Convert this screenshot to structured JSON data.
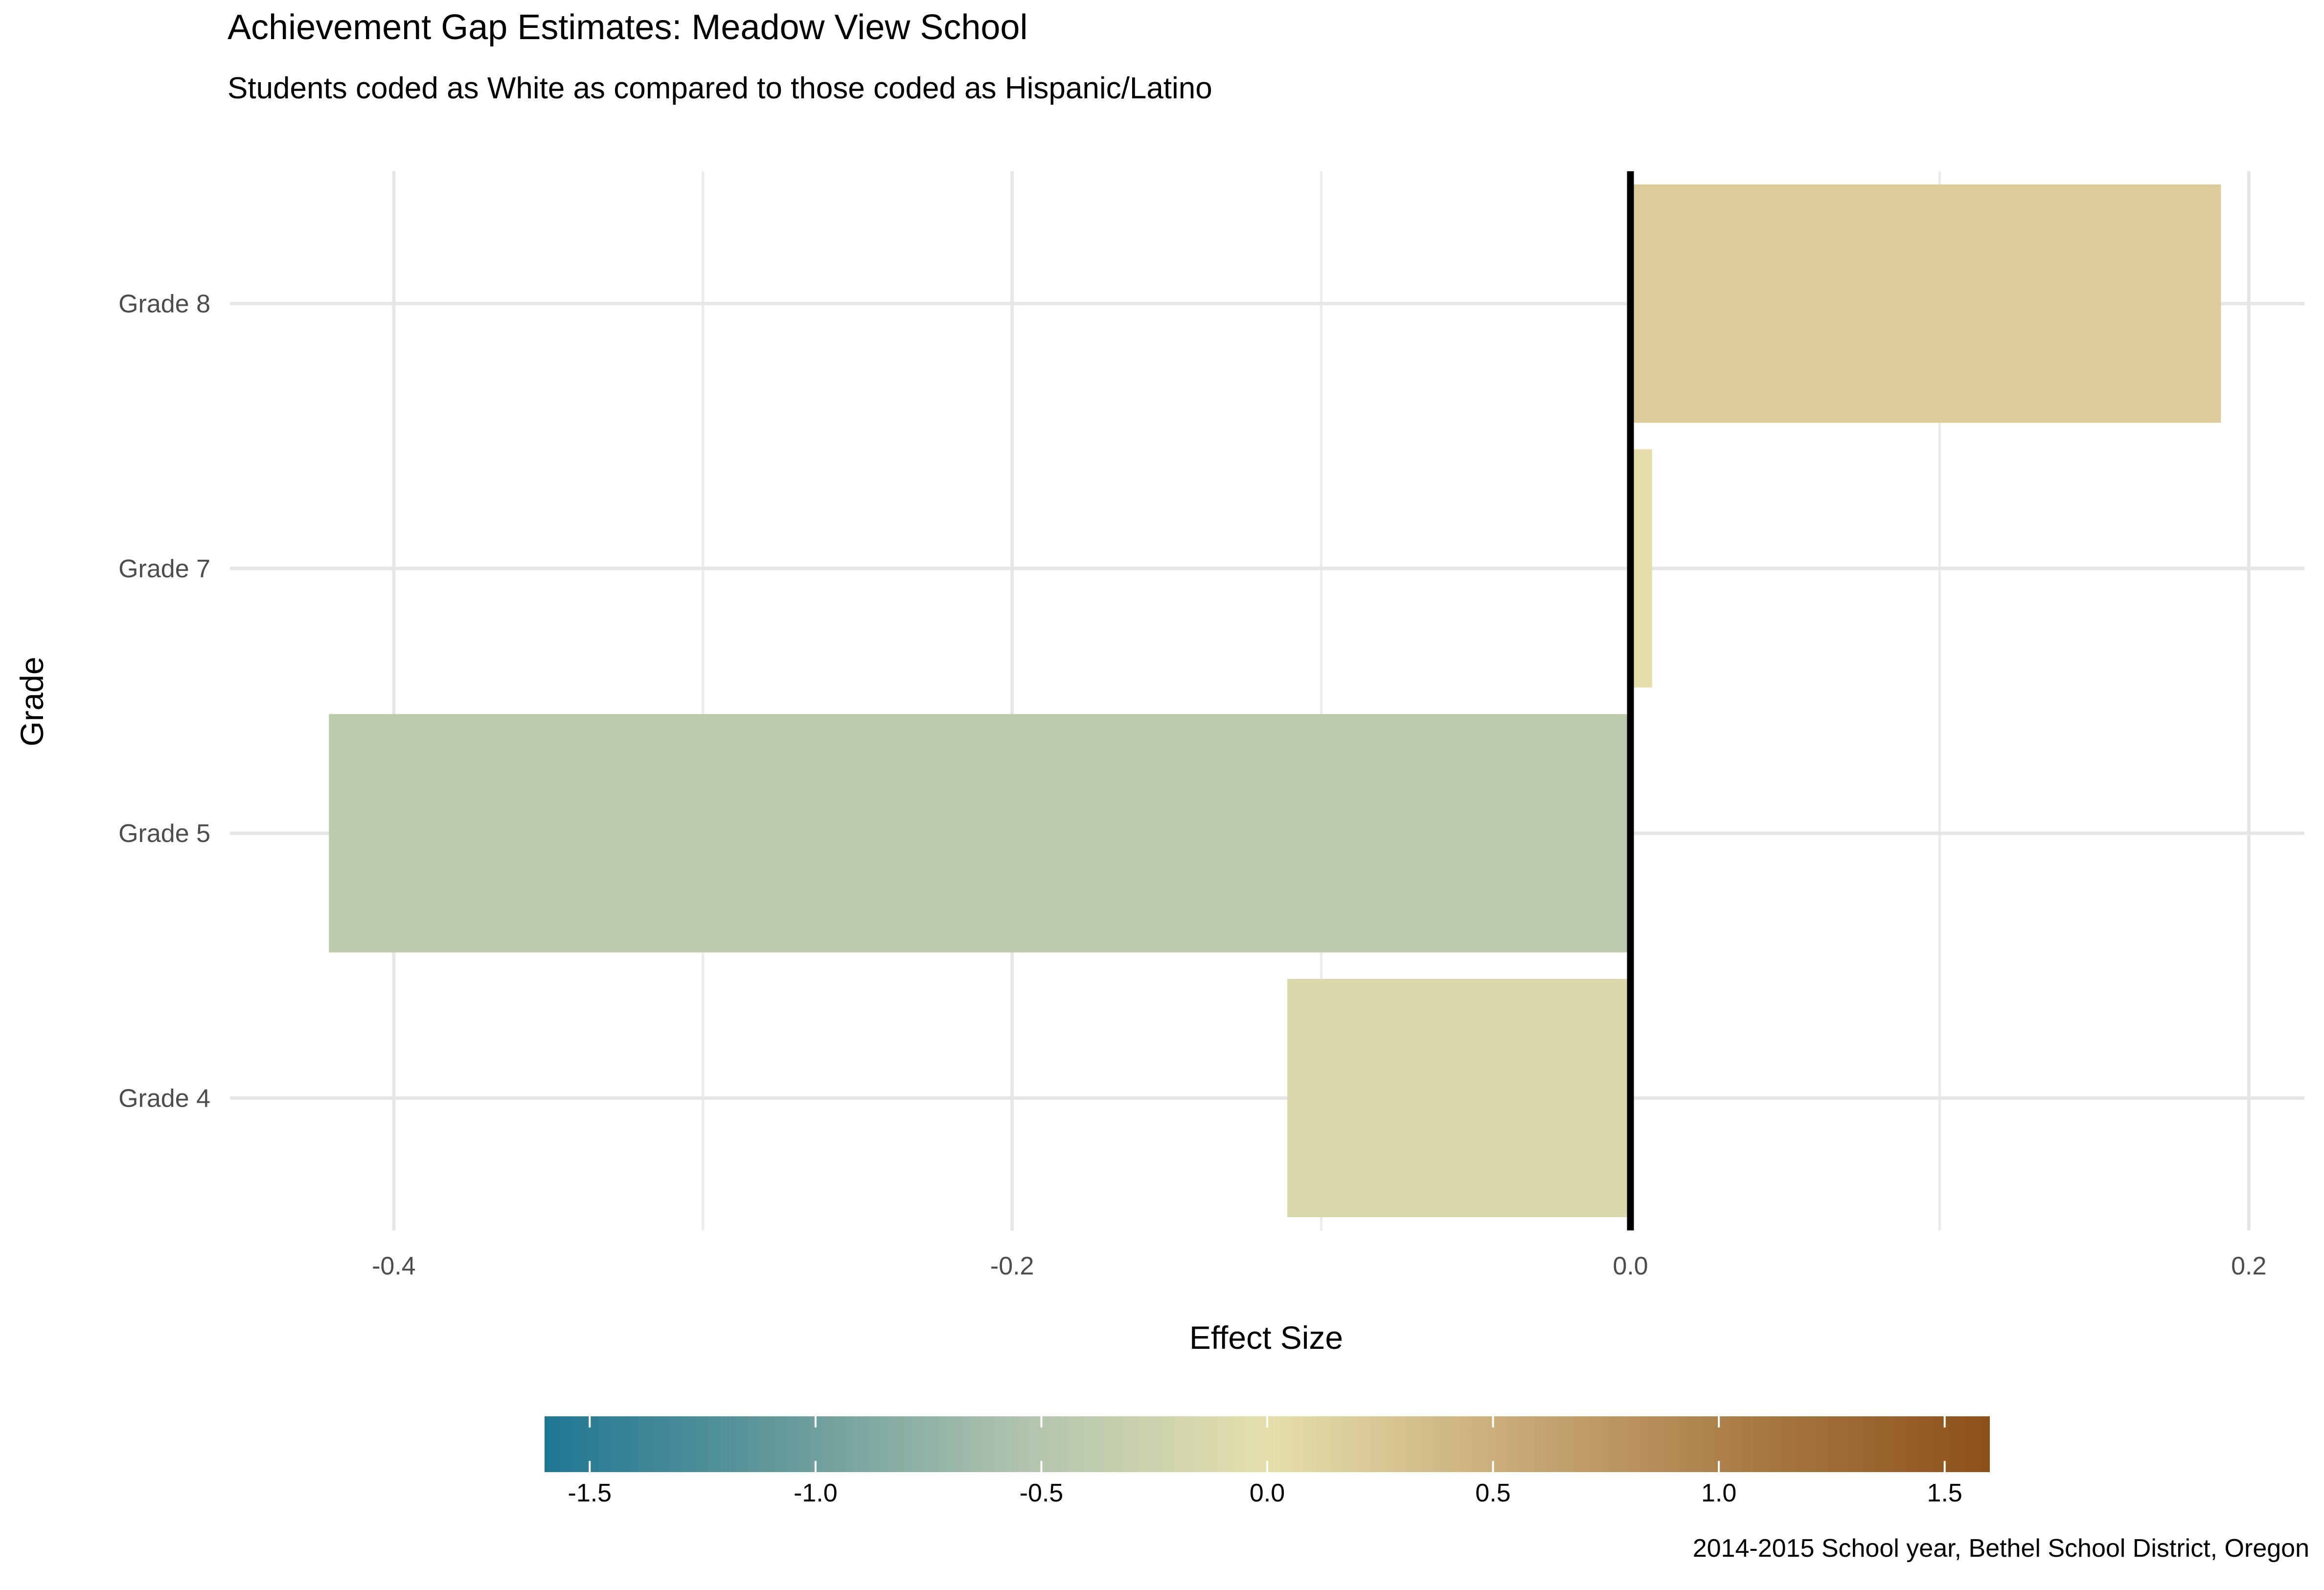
{
  "header": {
    "title": "Achievement Gap Estimates: Meadow View School",
    "subtitle": "Students coded as White as compared to those coded as Hispanic/Latino"
  },
  "caption": "2014-2015 School year, Bethel School District, Oregon",
  "chart_data": {
    "type": "bar",
    "orientation": "horizontal",
    "title": "Achievement Gap Estimates: Meadow View School",
    "subtitle": "Students coded as White as compared to those coded as Hispanic/Latino",
    "xlabel": "Effect Size",
    "ylabel": "Grade",
    "categories": [
      "Grade 4",
      "Grade 5",
      "Grade 7",
      "Grade 8"
    ],
    "values": [
      -0.111,
      -0.421,
      0.007,
      0.191
    ],
    "xlim": [
      -0.453,
      0.218
    ],
    "x_ticks": [
      -0.4,
      -0.2,
      0.0,
      0.2
    ],
    "x_tick_labels": [
      "-0.4",
      "-0.2",
      "0.0",
      "0.2"
    ],
    "zero_reference_line": true,
    "grid": true,
    "legend": {
      "type": "colorbar",
      "placement": "bottom",
      "range": [
        -1.6,
        1.6
      ],
      "ticks": [
        -1.5,
        -1.0,
        -0.5,
        0.0,
        0.5,
        1.0,
        1.5
      ],
      "tick_labels": [
        "-1.5",
        "-1.0",
        "-0.5",
        "0.0",
        "0.5",
        "1.0",
        "1.5"
      ],
      "colors": [
        "#1f7794",
        "#659a9b",
        "#b1c4ae",
        "#e5dfac",
        "#c9ab78",
        "#a97a44",
        "#8c5119"
      ]
    }
  }
}
